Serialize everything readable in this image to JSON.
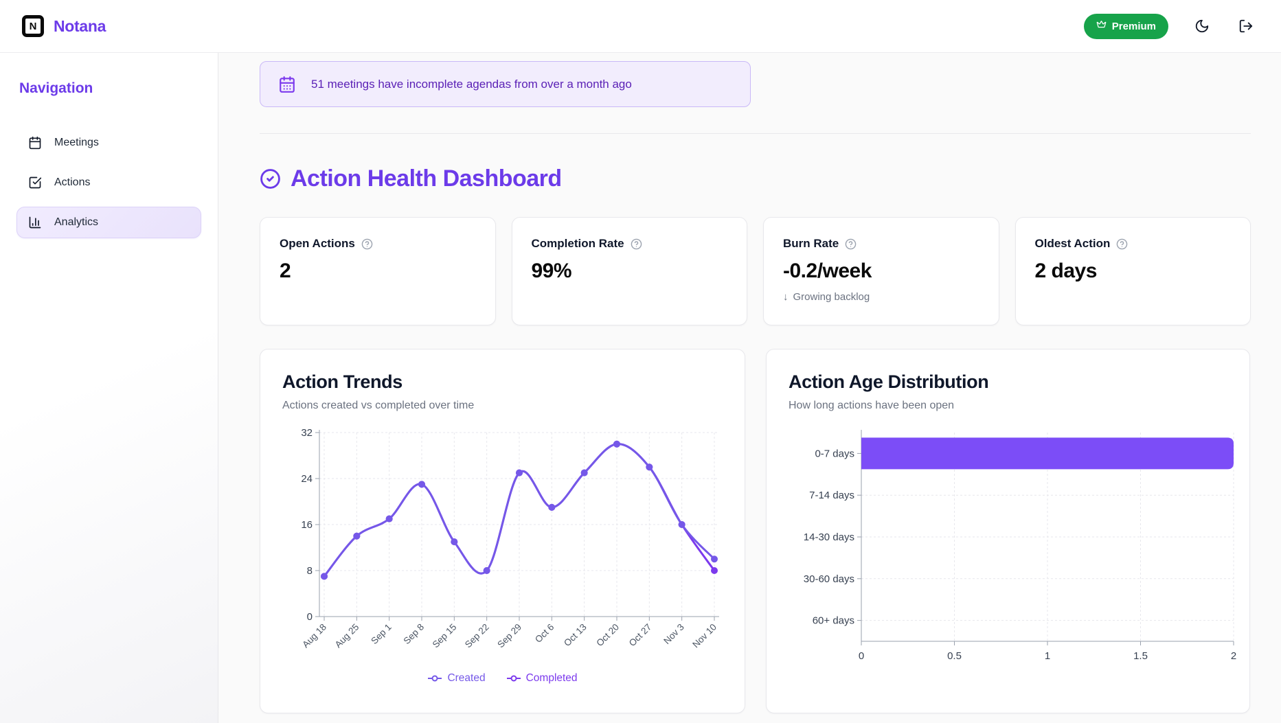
{
  "brand": {
    "name": "Notana",
    "logo_letter": "N",
    "accent": "#6c3be9"
  },
  "header": {
    "premium_label": "Premium",
    "premium_color": "#17a34a"
  },
  "sidebar": {
    "heading": "Navigation",
    "items": [
      {
        "label": "Meetings",
        "icon": "calendar-icon",
        "active": false
      },
      {
        "label": "Actions",
        "icon": "square-check-icon",
        "active": false
      },
      {
        "label": "Analytics",
        "icon": "bar-chart-icon",
        "active": true
      }
    ]
  },
  "banner": {
    "text": "51 meetings have incomplete agendas from over a month ago",
    "icon": "calendar-icon",
    "bg": "#f2edfd",
    "border": "#c9b8f7",
    "text_color": "#5b21b6"
  },
  "dashboard": {
    "title": "Action Health Dashboard",
    "icon": "circle-check-icon"
  },
  "stats": [
    {
      "label": "Open Actions",
      "value": "2"
    },
    {
      "label": "Completion Rate",
      "value": "99%"
    },
    {
      "label": "Burn Rate",
      "value": "-0.2/week",
      "note": "Growing backlog",
      "note_icon": "arrow-down-icon",
      "note_arrow": "↓"
    },
    {
      "label": "Oldest Action",
      "value": "2 days"
    }
  ],
  "chart_data": [
    {
      "type": "line",
      "title": "Action Trends",
      "subtitle": "Actions created vs completed over time",
      "x": [
        "Aug 18",
        "Aug 25",
        "Sep 1",
        "Sep 8",
        "Sep 15",
        "Sep 22",
        "Sep 29",
        "Oct 6",
        "Oct 13",
        "Oct 20",
        "Oct 27",
        "Nov 3",
        "Nov 10"
      ],
      "series": [
        {
          "name": "Created",
          "color": "#7558e8",
          "values": [
            7,
            14,
            17,
            23,
            13,
            8,
            25,
            19,
            25,
            30,
            26,
            16,
            10
          ]
        },
        {
          "name": "Completed",
          "color": "#7c3aed",
          "values": [
            7,
            14,
            17,
            23,
            13,
            8,
            25,
            19,
            25,
            30,
            26,
            16,
            8
          ]
        }
      ],
      "ylim": [
        0,
        32
      ],
      "yticks": [
        0,
        8,
        16,
        24,
        32
      ],
      "grid": true,
      "legend_position": "bottom"
    },
    {
      "type": "bar",
      "orientation": "horizontal",
      "title": "Action Age Distribution",
      "subtitle": "How long actions have been open",
      "categories": [
        "0-7 days",
        "7-14 days",
        "14-30 days",
        "30-60 days",
        "60+ days"
      ],
      "values": [
        2,
        0,
        0,
        0,
        0
      ],
      "xlim": [
        0,
        2
      ],
      "xticks": [
        0,
        0.5,
        1,
        1.5,
        2
      ],
      "bar_color": "#7c4df7",
      "grid": true
    }
  ]
}
